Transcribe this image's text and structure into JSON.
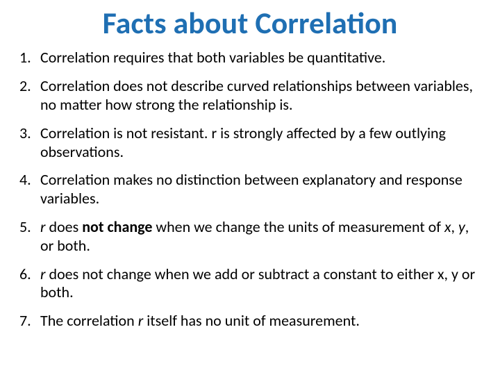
{
  "title": {
    "text": "Facts about Correlation",
    "color": "#1f6fb3",
    "fontsize": 44
  },
  "body": {
    "fontsize": 22,
    "color": "#000000"
  },
  "items": [
    {
      "html": "Correlation requires that both variables be quantitative."
    },
    {
      "html": "Correlation does not describe curved relationships between variables, no matter how strong the relationship is."
    },
    {
      "html": "Correlation is not resistant. r is strongly affected by a few outlying observations."
    },
    {
      "html": "Correlation makes no distinction between explanatory and response variables."
    },
    {
      "html": "<span class='em'>r</span> does <span class='b'>not change</span> when we change the units of measurement of <span class='em'>x</span>, <span class='em'>y</span>, or both."
    },
    {
      "html": "<span class='em'>r</span> does not change when we add or subtract a constant to either x, y or both."
    },
    {
      "html": "The correlation <span class='em'>r</span> itself has no unit of measurement."
    }
  ]
}
